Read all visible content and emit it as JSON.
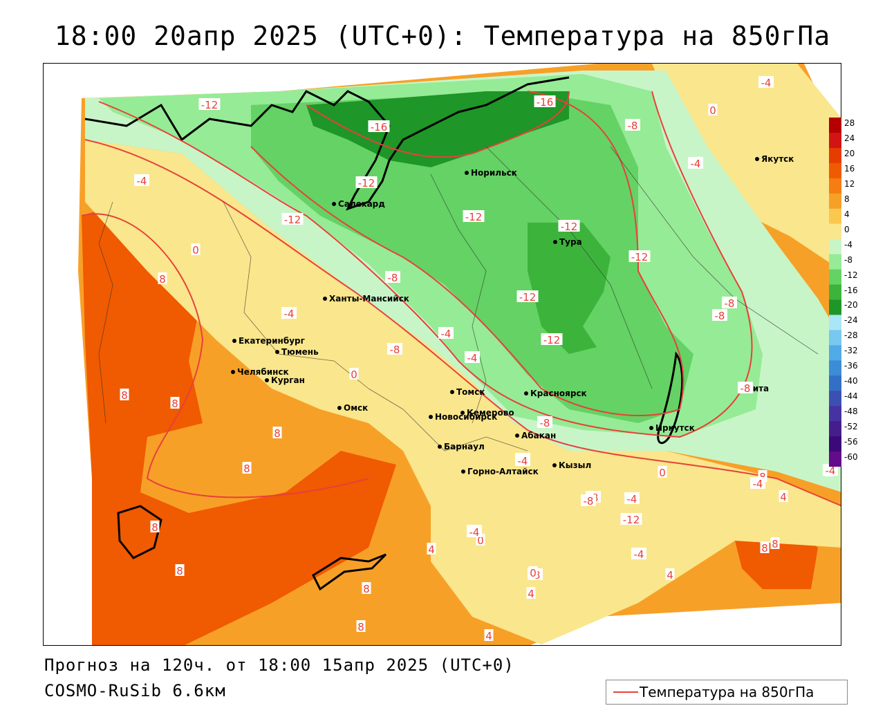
{
  "title": "18:00 20апр 2025 (UTC+0): Температура на 850гПа",
  "forecast_line": "Прогноз на 120ч. от 18:00 15апр 2025 (UTC+0)",
  "model_line": "COSMO-RuSib 6.6км",
  "legend": {
    "label": "Температура на 850гПа",
    "color": "#e8403a"
  },
  "colorbar": {
    "labels": [
      "28",
      "24",
      "20",
      "16",
      "12",
      "8",
      "4",
      "0",
      "-4",
      "-8",
      "-12",
      "-16",
      "-20",
      "-24",
      "-28",
      "-32",
      "-36",
      "-40",
      "-44",
      "-48",
      "-52",
      "-56",
      "-60"
    ],
    "colors": [
      "#b40000",
      "#d21414",
      "#e63c00",
      "#f05a00",
      "#f57d14",
      "#f7a028",
      "#fac850",
      "#fae68c",
      "#c8f5c8",
      "#96eb96",
      "#64d264",
      "#3cb43c",
      "#1e9628",
      "#aae6f5",
      "#78c8f0",
      "#50aae6",
      "#3c8cd7",
      "#3270c8",
      "#3c50b4",
      "#4632a0",
      "#461e8c",
      "#3c0a78",
      "#640a8c"
    ]
  },
  "cities": [
    {
      "name": "Якутск"
    },
    {
      "name": "Норильск"
    },
    {
      "name": "Салехард"
    },
    {
      "name": "Тура"
    },
    {
      "name": "Ханты-Мансийск"
    },
    {
      "name": "Екатеринбург"
    },
    {
      "name": "Тюмень"
    },
    {
      "name": "Челябинск"
    },
    {
      "name": "Курган"
    },
    {
      "name": "Омск"
    },
    {
      "name": "Новосибирск"
    },
    {
      "name": "Томск"
    },
    {
      "name": "Кемерово"
    },
    {
      "name": "Красноярск"
    },
    {
      "name": "Барнаул"
    },
    {
      "name": "Абакан"
    },
    {
      "name": "Горно-Алтайск"
    },
    {
      "name": "Кызыл"
    },
    {
      "name": "Иркутск"
    },
    {
      "name": "Чита"
    }
  ],
  "isoline_labels": [
    "-4",
    "-12",
    "-16",
    "-16",
    "-8",
    "-4",
    "0",
    "-12",
    "-12",
    "-12",
    "-12",
    "-12",
    "-12",
    "-12",
    "-4",
    "-8",
    "0",
    "8",
    "-4",
    "-4",
    "-8",
    "-4",
    "-8",
    "-8",
    "8",
    "8",
    "0",
    "8",
    "8",
    "8",
    "8",
    "8",
    "8",
    "8",
    "8",
    "4",
    "-4",
    "0",
    "-4",
    "4",
    "4",
    "-8",
    "-4",
    "-8",
    "-12",
    "-8",
    "-4",
    "-8",
    "-4",
    "0",
    "4",
    "8",
    "0",
    "-4",
    "4",
    "-8",
    "-4",
    "4",
    "-4"
  ]
}
